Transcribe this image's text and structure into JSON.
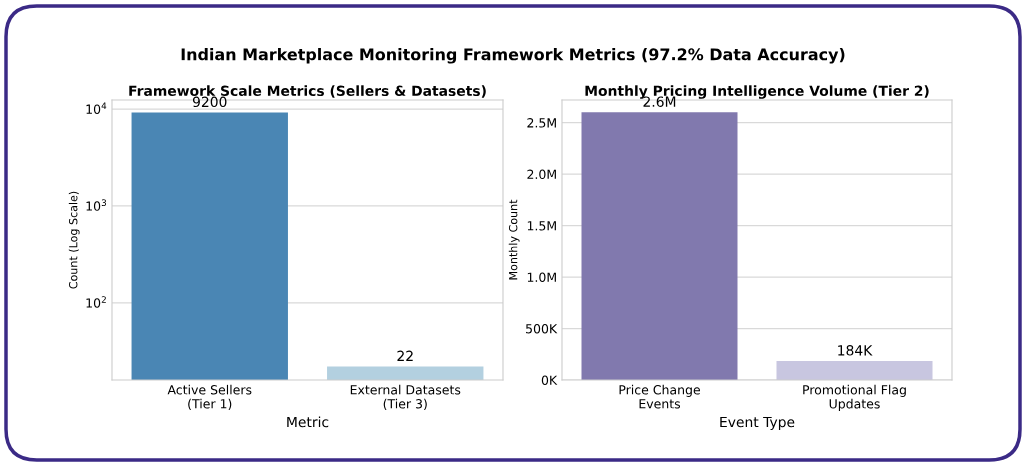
{
  "chart_data": [
    {
      "type": "other",
      "title": "Indian Marketplace Monitoring Framework Metrics (97.2% Data Accuracy)"
    },
    {
      "type": "bar",
      "title": "Framework Scale Metrics (Sellers & Datasets)",
      "xlabel": "Metric",
      "ylabel": "Count (Log Scale)",
      "categories": [
        "Active Sellers\n(Tier 1)",
        "External Datasets\n(Tier 3)"
      ],
      "values": [
        9200,
        22
      ],
      "colors": [
        "#4a86b4",
        "#b3d0e0"
      ],
      "log": "y",
      "ylim": [
        16,
        12400
      ],
      "yticks": [
        {
          "value": 100,
          "label": "10$^{2}$"
        },
        {
          "value": 1000,
          "label": "10$^{3}$"
        },
        {
          "value": 10000,
          "label": "10$^{4}$"
        }
      ],
      "grid": "y",
      "data_labels": true
    },
    {
      "type": "bar",
      "title": "Monthly Pricing Intelligence Volume (Tier 2)",
      "xlabel": "Event Type",
      "ylabel": "Monthly Count",
      "categories": [
        "Price Change\nEvents",
        "Promotional Flag\nUpdates"
      ],
      "values": [
        2600000,
        184000
      ],
      "value_labels": [
        "2.6M",
        "184K"
      ],
      "colors": [
        "#8179ae",
        "#c8c6e0"
      ],
      "ylim": [
        0,
        2720000
      ],
      "yticks": [
        {
          "value": 0,
          "label": "0K"
        },
        {
          "value": 500000,
          "label": "500K"
        },
        {
          "value": 1000000,
          "label": "1.0M"
        },
        {
          "value": 1500000,
          "label": "1.5M"
        },
        {
          "value": 2000000,
          "label": "2.0M"
        },
        {
          "value": 2500000,
          "label": "2.5M"
        }
      ],
      "grid": "y"
    }
  ]
}
